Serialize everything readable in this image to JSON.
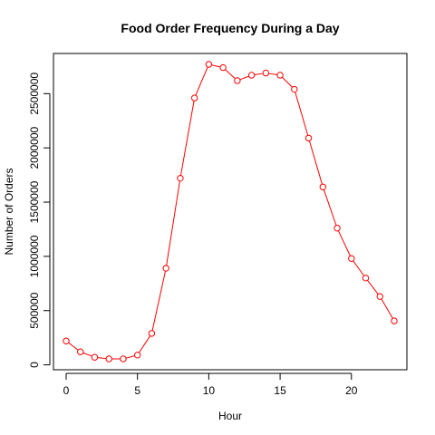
{
  "chart_data": {
    "type": "line",
    "title": "Food Order Frequency During a Day",
    "xlabel": "Hour",
    "ylabel": "Number of Orders",
    "xlim": [
      0,
      23
    ],
    "ylim": [
      55000,
      2770000
    ],
    "x_ticks": [
      0,
      5,
      10,
      15,
      20
    ],
    "y_ticks": [
      0,
      500000,
      1000000,
      1500000,
      2000000,
      2500000
    ],
    "grid": false,
    "legend": "none",
    "series": [
      {
        "color": "#FF0000",
        "marker": "open-circle",
        "x": [
          0,
          1,
          2,
          3,
          4,
          5,
          6,
          7,
          8,
          9,
          10,
          11,
          12,
          13,
          14,
          15,
          16,
          17,
          18,
          19,
          20,
          21,
          22,
          23
        ],
        "y": [
          220000,
          120000,
          70000,
          55000,
          55000,
          90000,
          290000,
          890000,
          1720000,
          2460000,
          2770000,
          2740000,
          2620000,
          2670000,
          2690000,
          2670000,
          2540000,
          2090000,
          1640000,
          1260000,
          980000,
          800000,
          630000,
          405000
        ]
      }
    ]
  }
}
